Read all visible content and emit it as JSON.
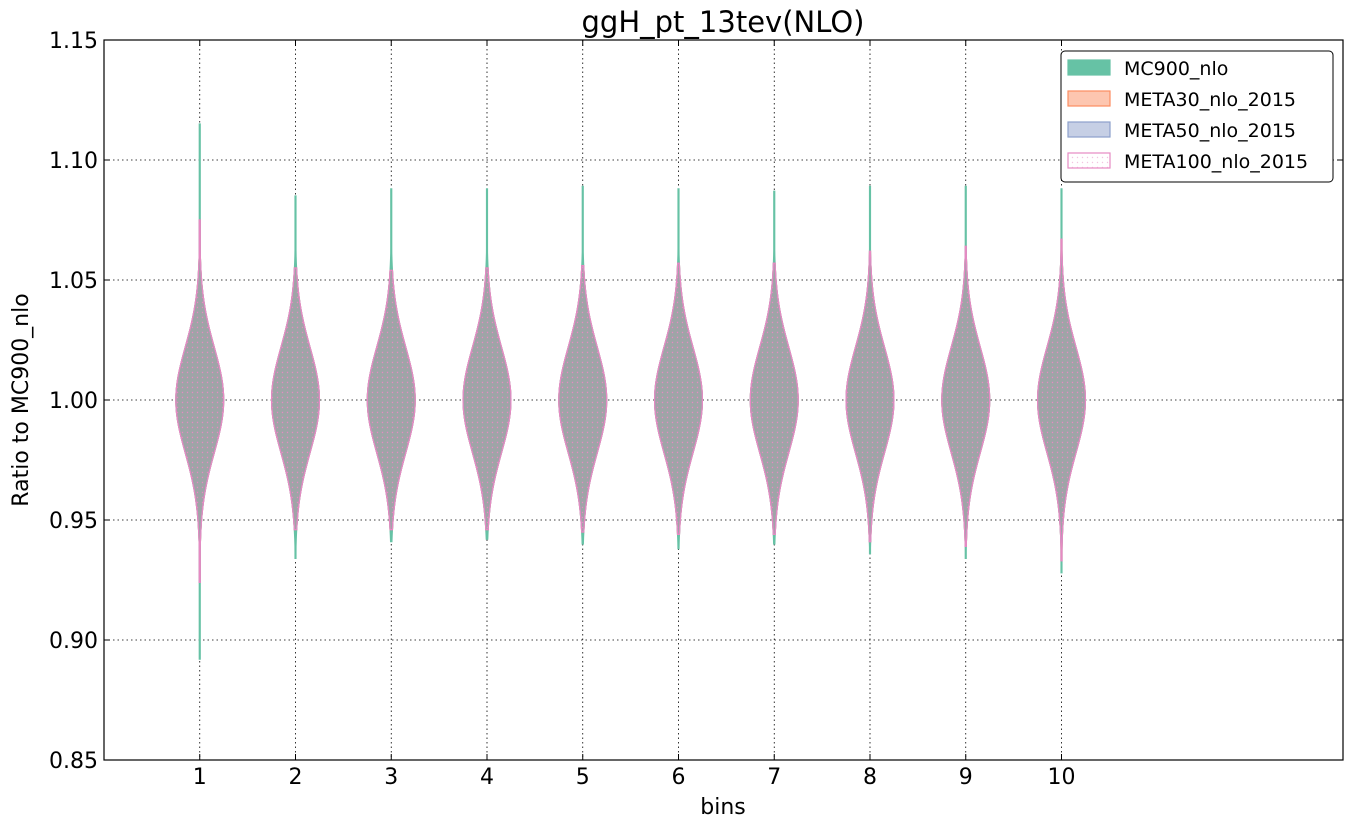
{
  "chart_data": {
    "type": "violin",
    "title": "ggH_pt_13tev(NLO)",
    "xlabel": "bins",
    "ylabel": "Ratio to MC900_nlo",
    "ylim": [
      0.85,
      1.15
    ],
    "xlim": [
      0,
      12.94
    ],
    "yticks": [
      "0.85",
      "0.90",
      "0.95",
      "1.00",
      "1.05",
      "1.10",
      "1.15"
    ],
    "xticks": [
      "1",
      "2",
      "3",
      "4",
      "5",
      "6",
      "7",
      "8",
      "9",
      "10"
    ],
    "grid": true,
    "legend_position": "top-right",
    "series": [
      {
        "name": "MC900_nlo",
        "color": "#66c2a5",
        "style": "filled",
        "ranges": [
          [
            0.892,
            1.115
          ],
          [
            0.934,
            1.085
          ],
          [
            0.941,
            1.088
          ],
          [
            0.942,
            1.088
          ],
          [
            0.94,
            1.089
          ],
          [
            0.938,
            1.088
          ],
          [
            0.94,
            1.087
          ],
          [
            0.936,
            1.089
          ],
          [
            0.934,
            1.089
          ],
          [
            0.928,
            1.088
          ]
        ],
        "width_scale": 0.25
      },
      {
        "name": "META30_nlo_2015",
        "color": "#fc8d62",
        "style": "filled",
        "ranges": [
          [
            0.924,
            1.075
          ],
          [
            0.946,
            1.055
          ],
          [
            0.946,
            1.054
          ],
          [
            0.946,
            1.055
          ],
          [
            0.945,
            1.056
          ],
          [
            0.944,
            1.057
          ],
          [
            0.944,
            1.057
          ],
          [
            0.941,
            1.062
          ],
          [
            0.939,
            1.064
          ],
          [
            0.933,
            1.067
          ]
        ],
        "width_scale": 0.25
      },
      {
        "name": "META50_nlo_2015",
        "color": "#8da0cb",
        "style": "filled",
        "ranges": [
          [
            0.924,
            1.075
          ],
          [
            0.946,
            1.055
          ],
          [
            0.946,
            1.054
          ],
          [
            0.946,
            1.055
          ],
          [
            0.945,
            1.056
          ],
          [
            0.944,
            1.057
          ],
          [
            0.944,
            1.057
          ],
          [
            0.941,
            1.062
          ],
          [
            0.939,
            1.064
          ],
          [
            0.933,
            1.067
          ]
        ],
        "width_scale": 0.25
      },
      {
        "name": "META100_nlo_2015",
        "color": "#e78ac3",
        "style": "hatched",
        "ranges": [
          [
            0.924,
            1.075
          ],
          [
            0.946,
            1.055
          ],
          [
            0.946,
            1.054
          ],
          [
            0.946,
            1.055
          ],
          [
            0.945,
            1.056
          ],
          [
            0.944,
            1.057
          ],
          [
            0.944,
            1.057
          ],
          [
            0.941,
            1.062
          ],
          [
            0.939,
            1.064
          ],
          [
            0.933,
            1.067
          ]
        ],
        "width_scale": 0.25
      }
    ],
    "violin_width": 0.25
  }
}
